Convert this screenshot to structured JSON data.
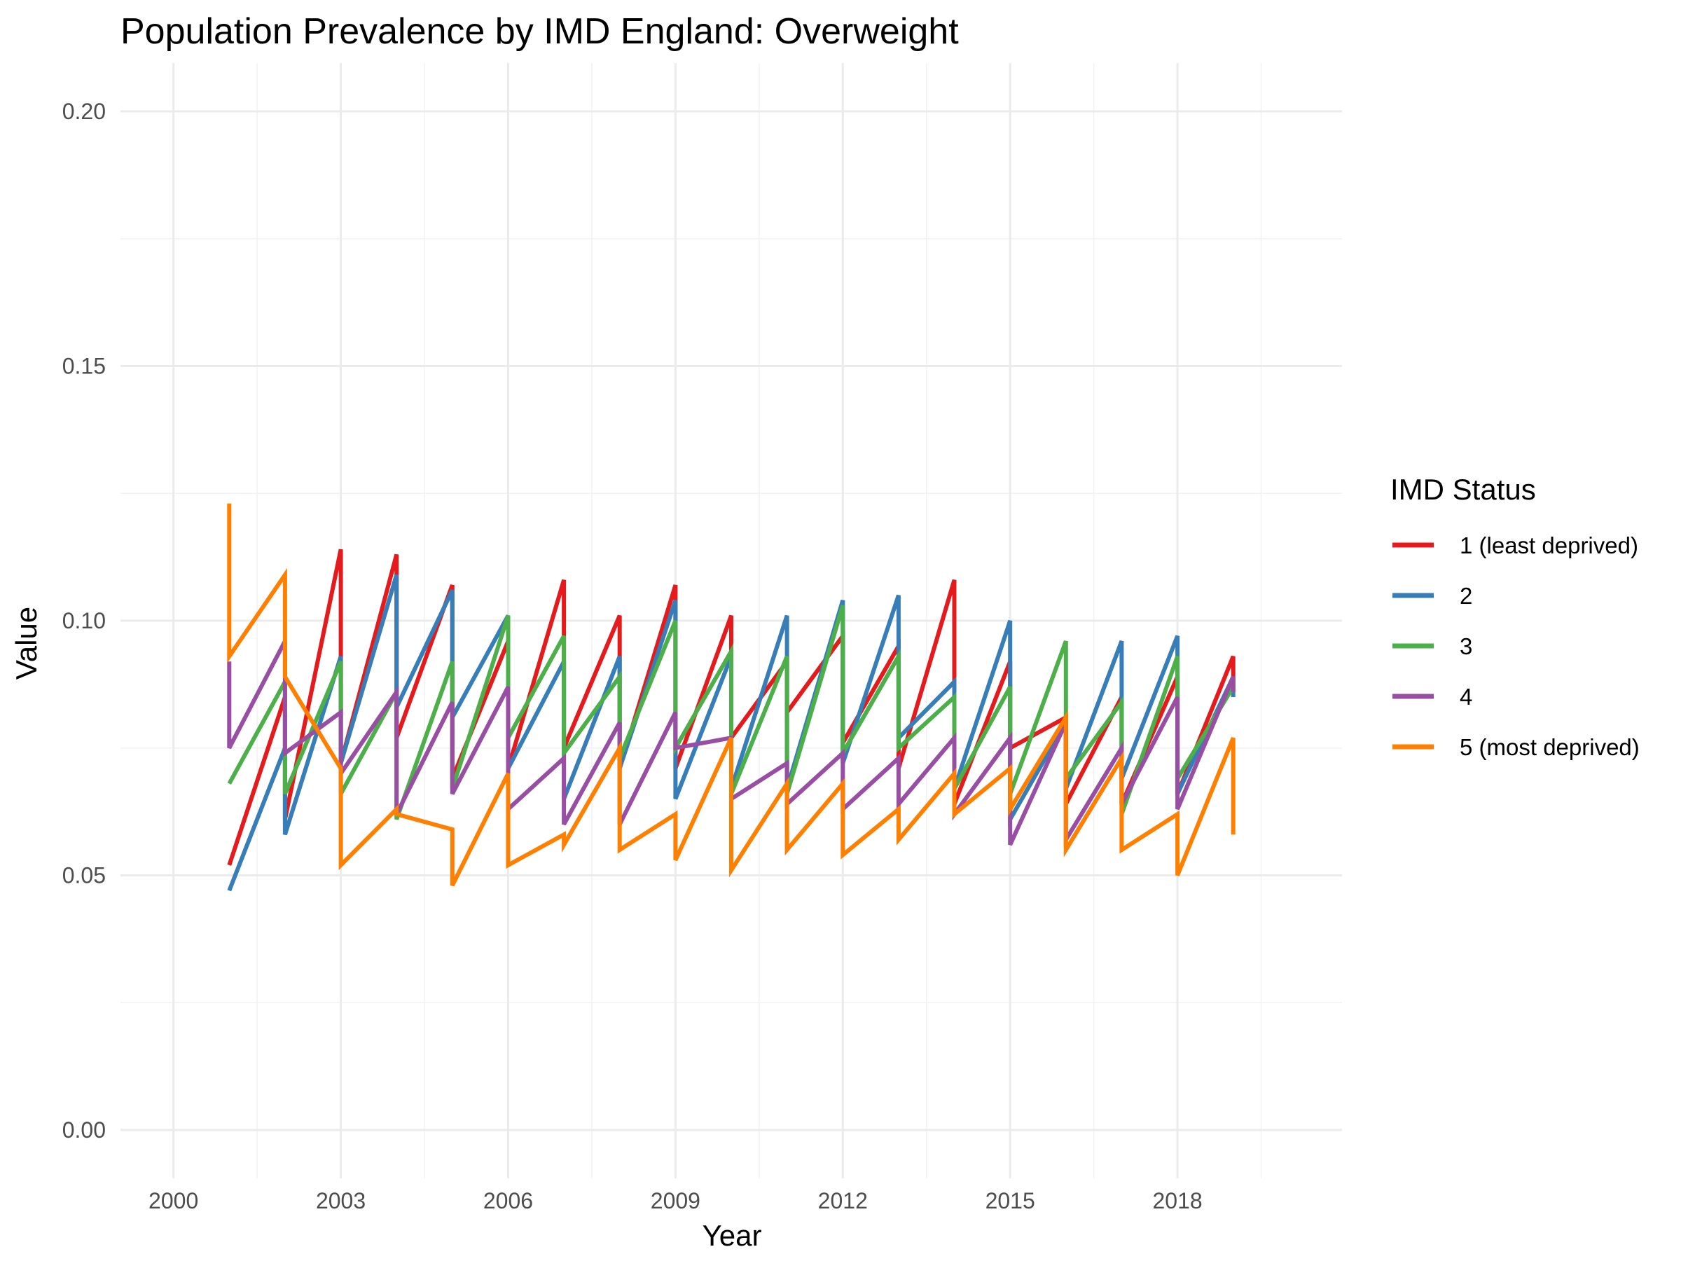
{
  "chart_data": {
    "type": "line",
    "title": "Population Prevalence by IMD England: Overweight",
    "xlabel": "Year",
    "ylabel": "Value",
    "xlim": [
      1999.05,
      2020.95
    ],
    "ylim": [
      -0.0095,
      0.2095
    ],
    "x_ticks": [
      2000,
      2003,
      2006,
      2009,
      2012,
      2015,
      2018
    ],
    "x_minor_ticks": [
      2001.5,
      2004.5,
      2007.5,
      2010.5,
      2013.5,
      2016.5,
      2019.5
    ],
    "y_ticks": [
      0.0,
      0.05,
      0.1,
      0.15,
      0.2
    ],
    "y_tick_labels": [
      "0.00",
      "0.05",
      "0.10",
      "0.15",
      "0.20"
    ],
    "y_minor_ticks": [
      0.025,
      0.075,
      0.125,
      0.175
    ],
    "grid": true,
    "legend": {
      "title": "IMD Status",
      "position": "right"
    },
    "series": [
      {
        "name": "1 (least deprived)",
        "color": "#E41A1C",
        "x": [
          2001,
          2002,
          2002,
          2003,
          2003,
          2004,
          2004,
          2005,
          2005,
          2006,
          2006,
          2007,
          2007,
          2008,
          2008,
          2009,
          2009,
          2010,
          2010,
          2011,
          2011,
          2012,
          2012,
          2013,
          2013,
          2014,
          2014,
          2015,
          2015,
          2016,
          2016,
          2017,
          2017,
          2018,
          2018,
          2019,
          2019
        ],
        "y": [
          0.052,
          0.085,
          0.061,
          0.114,
          0.072,
          0.113,
          0.077,
          0.107,
          0.069,
          0.096,
          0.071,
          0.108,
          0.075,
          0.101,
          0.071,
          0.107,
          0.071,
          0.101,
          0.077,
          0.092,
          0.082,
          0.097,
          0.076,
          0.095,
          0.071,
          0.108,
          0.064,
          0.092,
          0.075,
          0.081,
          0.064,
          0.085,
          0.064,
          0.089,
          0.066,
          0.093,
          0.086
        ]
      },
      {
        "name": "2",
        "color": "#377EB8",
        "x": [
          2001,
          2002,
          2002,
          2003,
          2003,
          2004,
          2004,
          2005,
          2005,
          2006,
          2006,
          2007,
          2007,
          2008,
          2008,
          2009,
          2009,
          2010,
          2010,
          2011,
          2011,
          2012,
          2012,
          2013,
          2013,
          2014,
          2014,
          2015,
          2015,
          2016,
          2016,
          2017,
          2017,
          2018,
          2018,
          2019,
          2019
        ],
        "y": [
          0.047,
          0.075,
          0.058,
          0.093,
          0.072,
          0.109,
          0.083,
          0.106,
          0.081,
          0.101,
          0.071,
          0.092,
          0.065,
          0.093,
          0.071,
          0.104,
          0.065,
          0.093,
          0.067,
          0.101,
          0.067,
          0.104,
          0.072,
          0.105,
          0.077,
          0.088,
          0.067,
          0.1,
          0.061,
          0.08,
          0.067,
          0.096,
          0.069,
          0.097,
          0.066,
          0.089,
          0.085
        ]
      },
      {
        "name": "3",
        "color": "#4DAF4A",
        "x": [
          2001,
          2002,
          2002,
          2003,
          2003,
          2004,
          2004,
          2005,
          2005,
          2006,
          2006,
          2007,
          2007,
          2008,
          2008,
          2009,
          2009,
          2010,
          2010,
          2011,
          2011,
          2012,
          2012,
          2013,
          2013,
          2014,
          2014,
          2015,
          2015,
          2016,
          2016,
          2017,
          2017,
          2018,
          2018,
          2019,
          2019
        ],
        "y": [
          0.068,
          0.088,
          0.066,
          0.092,
          0.066,
          0.086,
          0.061,
          0.092,
          0.067,
          0.101,
          0.077,
          0.097,
          0.074,
          0.089,
          0.073,
          0.1,
          0.075,
          0.094,
          0.066,
          0.093,
          0.066,
          0.103,
          0.074,
          0.093,
          0.075,
          0.085,
          0.067,
          0.087,
          0.066,
          0.096,
          0.069,
          0.084,
          0.062,
          0.093,
          0.069,
          0.087,
          0.086
        ]
      },
      {
        "name": "4",
        "color": "#984EA3",
        "x": [
          2001,
          2001,
          2002,
          2002,
          2003,
          2003,
          2004,
          2004,
          2005,
          2005,
          2006,
          2006,
          2007,
          2007,
          2008,
          2008,
          2009,
          2009,
          2010,
          2010,
          2011,
          2011,
          2012,
          2012,
          2013,
          2013,
          2014,
          2014,
          2015,
          2015,
          2016,
          2016,
          2017,
          2017,
          2018,
          2018,
          2019,
          2019
        ],
        "y": [
          0.092,
          0.075,
          0.096,
          0.074,
          0.082,
          0.07,
          0.086,
          0.062,
          0.084,
          0.066,
          0.087,
          0.063,
          0.073,
          0.06,
          0.08,
          0.06,
          0.082,
          0.075,
          0.077,
          0.065,
          0.072,
          0.064,
          0.074,
          0.063,
          0.073,
          0.064,
          0.077,
          0.062,
          0.077,
          0.056,
          0.08,
          0.057,
          0.075,
          0.064,
          0.085,
          0.063,
          0.089,
          0.086
        ]
      },
      {
        "name": "5 (most deprived)",
        "color": "#FF7F00",
        "x": [
          2001,
          2001,
          2002,
          2002,
          2003,
          2003,
          2004,
          2004,
          2005,
          2005,
          2006,
          2006,
          2007,
          2007,
          2008,
          2008,
          2009,
          2009,
          2010,
          2010,
          2011,
          2011,
          2012,
          2012,
          2013,
          2013,
          2014,
          2014,
          2015,
          2015,
          2016,
          2016,
          2017,
          2017,
          2018,
          2018,
          2019,
          2019
        ],
        "y": [
          0.123,
          0.093,
          0.109,
          0.089,
          0.071,
          0.052,
          0.063,
          0.062,
          0.059,
          0.048,
          0.07,
          0.052,
          0.058,
          0.056,
          0.075,
          0.055,
          0.062,
          0.053,
          0.077,
          0.051,
          0.068,
          0.055,
          0.068,
          0.054,
          0.063,
          0.057,
          0.07,
          0.062,
          0.071,
          0.063,
          0.081,
          0.055,
          0.073,
          0.055,
          0.062,
          0.05,
          0.077,
          0.058
        ]
      }
    ]
  }
}
